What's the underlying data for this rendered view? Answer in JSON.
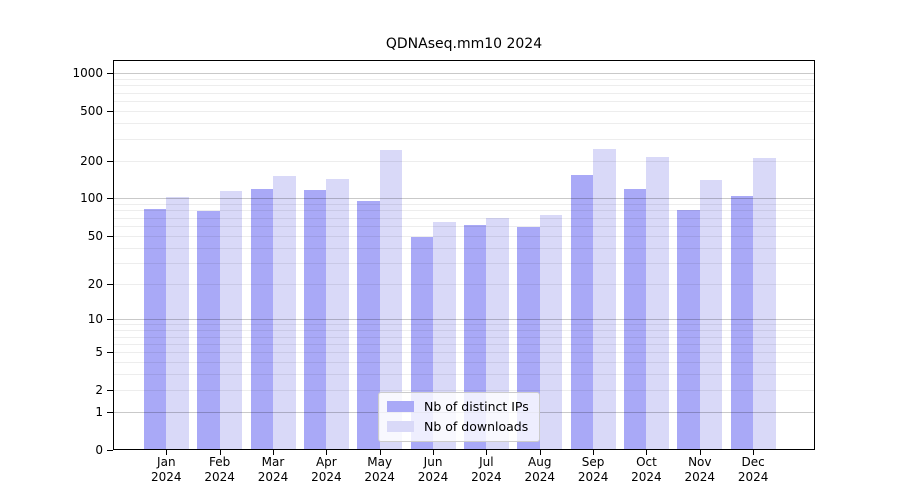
{
  "chart_data": {
    "type": "bar",
    "title": "QDNAseq.mm10 2024",
    "year": "2024",
    "categories": [
      "Jan",
      "Feb",
      "Mar",
      "Apr",
      "May",
      "Jun",
      "Jul",
      "Aug",
      "Sep",
      "Oct",
      "Nov",
      "Dec"
    ],
    "series": [
      {
        "name": "Nb of distinct IPs",
        "color": "#a9a9f7",
        "values": [
          82,
          79,
          120,
          116,
          96,
          49,
          61,
          59,
          155,
          120,
          81,
          105
        ]
      },
      {
        "name": "Nb of downloads",
        "color": "#d9d9f8",
        "values": [
          102,
          115,
          152,
          143,
          245,
          65,
          70,
          73,
          250,
          213,
          140,
          210
        ]
      }
    ],
    "y_ticks": [
      0,
      1,
      2,
      5,
      10,
      20,
      50,
      100,
      200,
      500,
      1000
    ],
    "y_scale": "log1p",
    "ylim": [
      0,
      1000
    ],
    "xlabel": "",
    "ylabel": "",
    "grid": "horizontal",
    "grid_major_color": "#c9c9c9",
    "grid_minor_color": "#ededed",
    "legend_position": "lower center",
    "frame_color": "#000000",
    "background_color": "#ffffff"
  }
}
